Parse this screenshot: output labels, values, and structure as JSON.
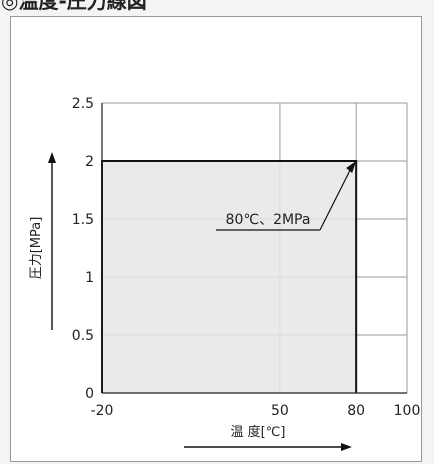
{
  "header": {
    "title": "◎温度-圧力線図"
  },
  "chart_data": {
    "type": "area",
    "title": "",
    "xlabel": "温 度[℃]",
    "ylabel": "圧力[MPa]",
    "xlim": [
      -20,
      100
    ],
    "ylim": [
      0,
      2.5
    ],
    "x_ticks": [
      {
        "value": -20,
        "label": "-20"
      },
      {
        "value": 50,
        "label": "50"
      },
      {
        "value": 80,
        "label": "80"
      },
      {
        "value": 100,
        "label": "100"
      }
    ],
    "y_ticks": [
      {
        "value": 0,
        "label": "0"
      },
      {
        "value": 0.5,
        "label": "0.5"
      },
      {
        "value": 1,
        "label": "1"
      },
      {
        "value": 1.5,
        "label": "1.5"
      },
      {
        "value": 2,
        "label": "2"
      },
      {
        "value": 2.5,
        "label": "2.5"
      }
    ],
    "grid": true,
    "series": [
      {
        "x": [
          -20,
          -20,
          80,
          80
        ],
        "y": [
          0,
          2,
          2,
          0
        ]
      }
    ],
    "annotation": {
      "text": "80℃、2MPa",
      "x": 80,
      "y": 2
    },
    "colors": {
      "fill": "#e6e6e6",
      "outline": "#111111",
      "grid": "#999999"
    }
  }
}
